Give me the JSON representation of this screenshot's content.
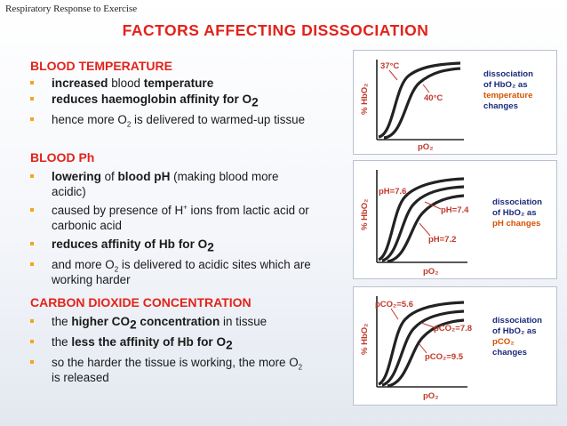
{
  "header_label": "Respiratory Response to Exercise",
  "title": "FACTORS AFFECTING DISSSOCIATION",
  "sections": [
    {
      "heading": "BLOOD TEMPERATURE",
      "bullets": [
        {
          "b1": "increased",
          "t1": " blood ",
          "b2": "temperature"
        },
        {
          "b1": "reduces haemoglobin affinity for O",
          "s1": "2"
        },
        {
          "t1": "hence more O",
          "s1": "2",
          "t2": " is delivered to warmed-up tissue"
        }
      ]
    },
    {
      "heading": "BLOOD Ph",
      "bullets": [
        {
          "b1": "lowering",
          "t1": " of ",
          "b2": "blood pH",
          "t2": " (making blood more acidic)"
        },
        {
          "t1": "caused by presence of H",
          "sup1": "+",
          "t2": " ions from lactic acid or carbonic acid"
        },
        {
          "b1": "reduces affinity of Hb for O",
          "s1": "2"
        },
        {
          "t1": "and more O",
          "s1": "2",
          "t2": " is delivered to acidic sites which are working harder"
        }
      ]
    },
    {
      "heading": "CARBON DIOXIDE CONCENTRATION",
      "bullets": [
        {
          "t1": "the ",
          "b1": "higher CO",
          "s1": "2",
          "b2": " concentration",
          "t2": " in tissue"
        },
        {
          "t1": "the ",
          "b1": "less the affinity of Hb for O",
          "s1": "2"
        },
        {
          "t1": "so the harder the tissue is working, the more O",
          "s1": "2",
          "t2": " is released"
        }
      ]
    }
  ],
  "panels": [
    {
      "ylabel": "% HbO₂",
      "xlabel": "pO₂",
      "curve_labels": [
        "37°C",
        "40°C"
      ],
      "desc": [
        "dissociation",
        "of HbO₂ as",
        "temperature",
        "changes"
      ]
    },
    {
      "ylabel": "% HbO₂",
      "xlabel": "pO₂",
      "curve_labels": [
        "pH=7.6",
        "pH=7.4",
        "pH=7.2"
      ],
      "desc": [
        "dissociation",
        "of HbO₂ as",
        "pH changes"
      ]
    },
    {
      "ylabel": "% HbO₂",
      "xlabel": "pO₂",
      "curve_labels": [
        "pCO₂=5.6",
        "pCO₂=7.8",
        "pCO₂=9.5"
      ],
      "desc": [
        "dissociation",
        "of HbO₂ as",
        "pCO₂",
        "changes"
      ]
    }
  ]
}
